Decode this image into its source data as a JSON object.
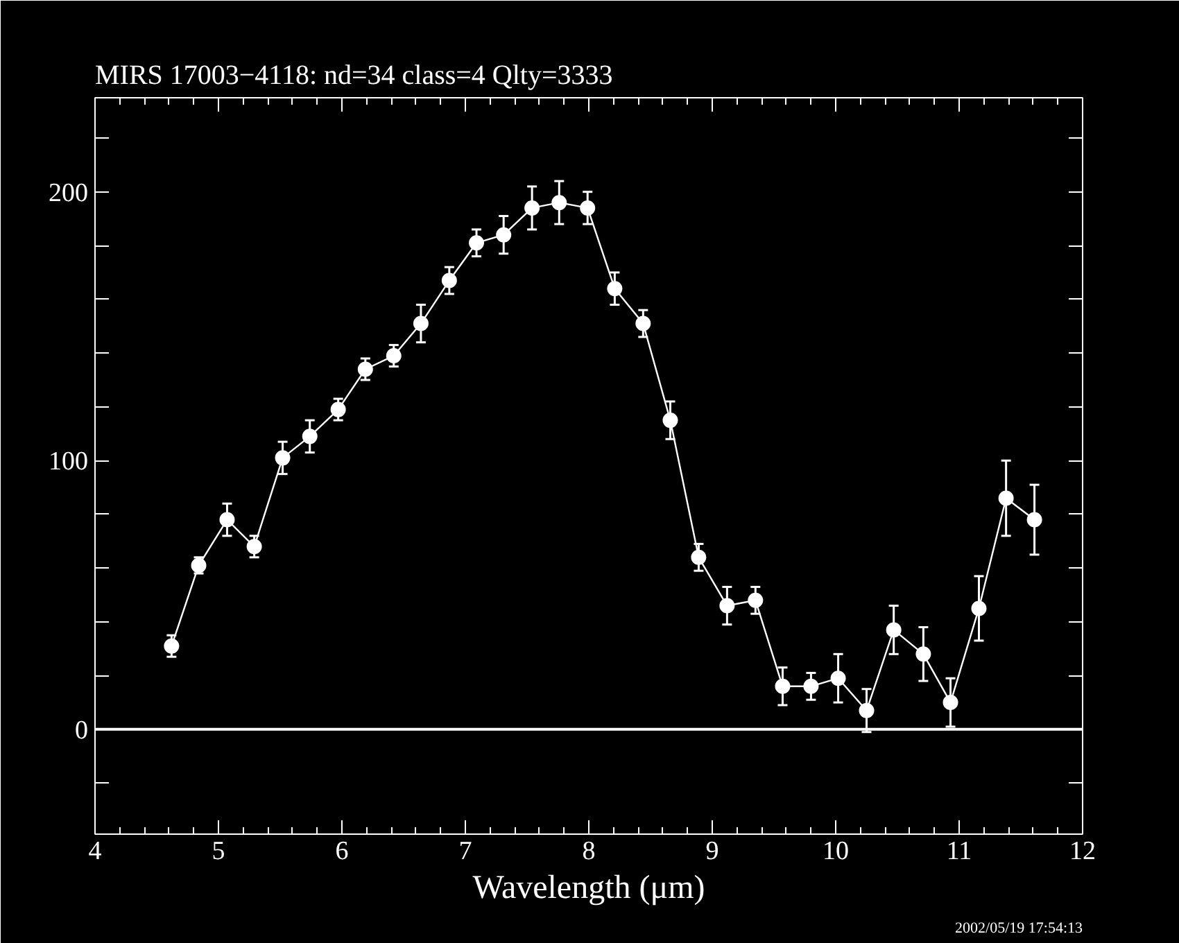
{
  "chart_data": {
    "type": "line",
    "title": "MIRS 17003−4118:     nd=34    class=4    Qlty=3333",
    "xlabel": "Wavelength (μm)",
    "x": [
      4.62,
      4.84,
      5.07,
      5.29,
      5.52,
      5.74,
      5.97,
      6.19,
      6.42,
      6.64,
      6.87,
      7.09,
      7.31,
      7.54,
      7.76,
      7.99,
      8.21,
      8.44,
      8.66,
      8.89,
      9.12,
      9.35,
      9.57,
      9.8,
      10.02,
      10.25,
      10.47,
      10.71,
      10.93,
      11.16,
      11.38,
      11.61
    ],
    "series": [
      {
        "color": "#ffffff",
        "values": [
          31,
          61,
          78,
          68,
          101,
          109,
          119,
          134,
          139,
          151,
          167,
          181,
          184,
          194,
          196,
          194,
          164,
          151,
          115,
          64,
          46,
          48,
          16,
          16,
          19,
          7,
          37,
          28,
          10,
          45,
          86,
          78
        ],
        "errors": [
          4,
          3,
          6,
          4,
          6,
          6,
          4,
          4,
          4,
          7,
          5,
          5,
          7,
          8,
          8,
          6,
          6,
          5,
          7,
          5,
          7,
          5,
          7,
          5,
          9,
          8,
          9,
          10,
          9,
          12,
          14,
          13
        ]
      }
    ],
    "marker": "circle",
    "line_style": "solid",
    "xlim": [
      4,
      12
    ],
    "xticks": [
      4,
      5,
      6,
      7,
      8,
      9,
      10,
      11,
      12
    ],
    "ylim": [
      -39,
      235
    ],
    "yticks": [
      {
        "value": -20,
        "label": null
      },
      0,
      {
        "value": 20,
        "label": null
      },
      {
        "value": 40,
        "label": null
      },
      {
        "value": 60,
        "label": null
      },
      {
        "value": 80,
        "label": null
      },
      100,
      {
        "value": 120,
        "label": null
      },
      {
        "value": 140,
        "label": null
      },
      {
        "value": 160,
        "label": null
      },
      {
        "value": 180,
        "label": null
      },
      200,
      {
        "value": 220,
        "label": null
      }
    ],
    "ref_lines": [
      {
        "axis": "y",
        "value": 0,
        "color": "#ffffff",
        "line_style": "solid"
      }
    ],
    "grid": false,
    "annotations": [
      "2002/05/19 17:54:13"
    ]
  }
}
